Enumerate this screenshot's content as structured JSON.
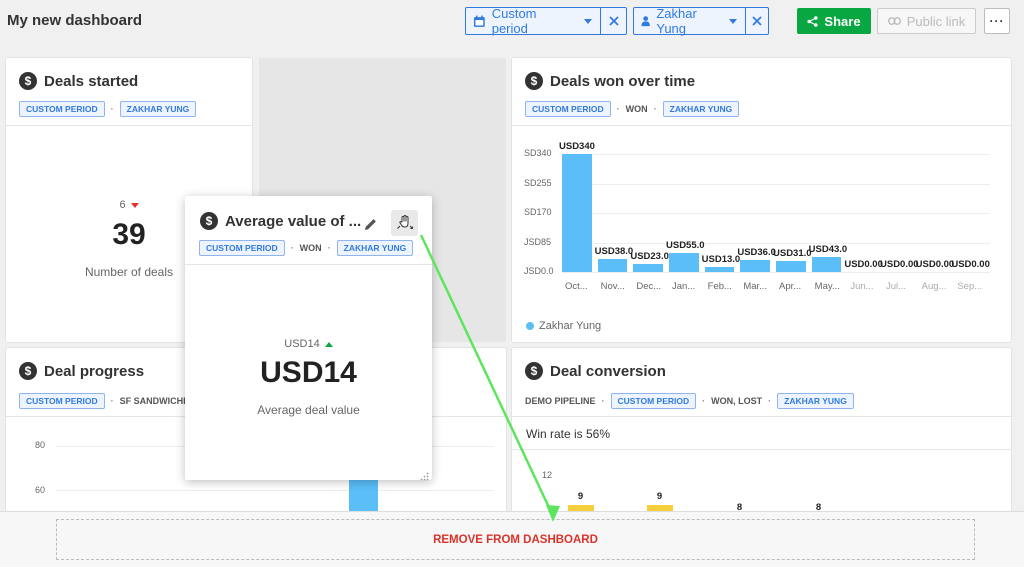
{
  "header": {
    "title": "My new dashboard",
    "filter_period": "Custom period",
    "filter_user": "Zakhar Yung",
    "share_label": "Share",
    "public_link_label": "Public link",
    "more_label": "···"
  },
  "deals_started": {
    "title": "Deals started",
    "tag_period": "CUSTOM PERIOD",
    "tag_user": "ZAKHAR YUNG",
    "delta": "6",
    "value": "39",
    "caption": "Number of deals"
  },
  "deals_won": {
    "title": "Deals won over time",
    "tag_period": "CUSTOM PERIOD",
    "status": "WON",
    "tag_user": "ZAKHAR YUNG",
    "legend": "Zakhar Yung"
  },
  "deal_progress": {
    "title": "Deal progress",
    "tag_period": "CUSTOM PERIOD",
    "pipeline": "SF SANDWICHES",
    "y_ticks": [
      "80",
      "60"
    ]
  },
  "deal_conversion": {
    "title": "Deal conversion",
    "pipeline": "DEMO PIPELINE",
    "tag_period": "CUSTOM PERIOD",
    "status": "WON, LOST",
    "tag_user": "ZAKHAR YUNG",
    "win_rate": "Win rate is 56%",
    "y_tick": "12",
    "bar_labels": [
      "9",
      "9",
      "8",
      "8"
    ]
  },
  "avg_value": {
    "title": "Average value of ...",
    "tag_period": "CUSTOM PERIOD",
    "status": "WON",
    "tag_user": "ZAKHAR YUNG",
    "delta": "USD14",
    "value": "USD14",
    "caption": "Average deal value"
  },
  "remove_label": "REMOVE FROM DASHBOARD",
  "colors": {
    "accent": "#317ae2",
    "share": "#08a742",
    "bar": "#5bbef9",
    "danger": "#d9342b"
  },
  "chart_data": [
    {
      "type": "bar",
      "title": "Deals won over time",
      "categories": [
        "Oct...",
        "Nov...",
        "Dec...",
        "Jan...",
        "Feb...",
        "Mar...",
        "Apr...",
        "May...",
        "Jun...",
        "Jul...",
        "Aug...",
        "Sep..."
      ],
      "values": [
        340,
        38,
        23,
        55,
        13,
        36,
        31,
        43,
        0,
        0,
        0,
        0
      ],
      "value_labels": [
        "USD340",
        "USD38.0",
        "USD23.0",
        "USD55.0",
        "USD13.0",
        "USD36.0",
        "USD31.0",
        "USD43.0",
        "USD0.00",
        "USD0.00",
        "USD0.00",
        "USD0.00"
      ],
      "y_ticks": [
        "SD340",
        "SD255",
        "SD170",
        "JSD85",
        "JSD0.0"
      ],
      "ylim": [
        0,
        340
      ],
      "series": [
        {
          "name": "Zakhar Yung",
          "values": [
            340,
            38,
            23,
            55,
            13,
            36,
            31,
            43,
            0,
            0,
            0,
            0
          ]
        }
      ]
    }
  ]
}
